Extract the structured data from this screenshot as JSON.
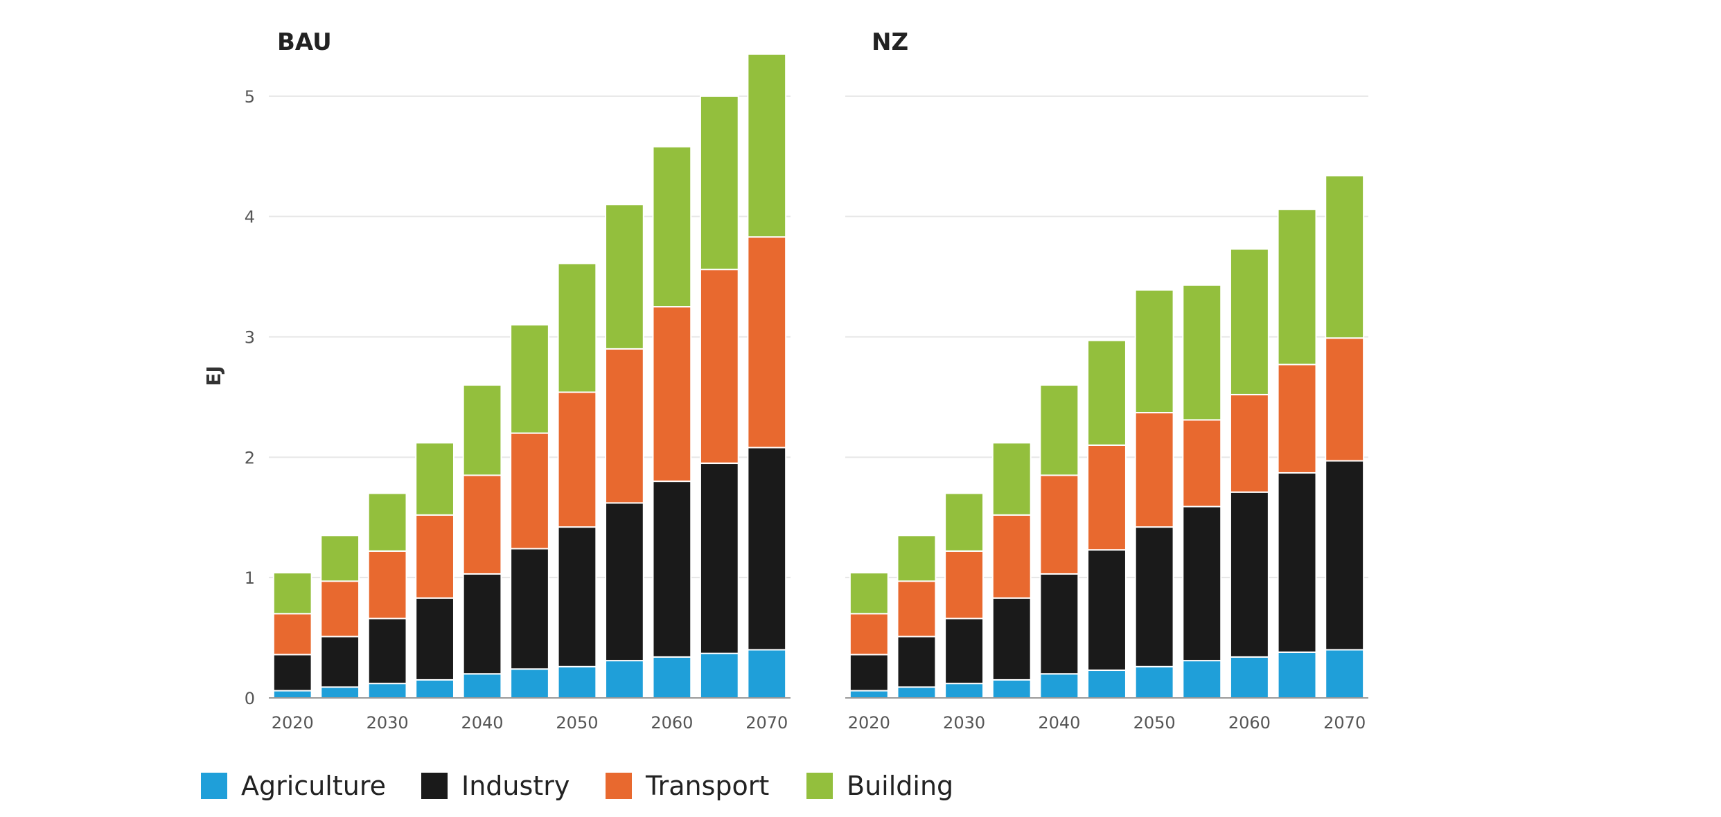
{
  "chart_data": [
    {
      "type": "bar",
      "stacked": true,
      "title": "BAU",
      "ylabel": "EJ",
      "xlabel": "",
      "ylim": [
        0,
        5.35
      ],
      "yticks": [
        0,
        1,
        2,
        3,
        4,
        5
      ],
      "categories": [
        2020,
        2025,
        2030,
        2035,
        2040,
        2045,
        2050,
        2055,
        2060,
        2065,
        2070
      ],
      "xtick_labels": [
        "2020",
        "2030",
        "2040",
        "2050",
        "2060",
        "2070"
      ],
      "grid": "horizontal",
      "series": [
        {
          "name": "Agriculture",
          "color": "#1f9fd9",
          "values": [
            0.06,
            0.09,
            0.12,
            0.15,
            0.2,
            0.24,
            0.26,
            0.31,
            0.34,
            0.37,
            0.4
          ]
        },
        {
          "name": "Industry",
          "color": "#1a1a1a",
          "values": [
            0.3,
            0.42,
            0.54,
            0.68,
            0.83,
            1.0,
            1.16,
            1.31,
            1.46,
            1.58,
            1.68
          ]
        },
        {
          "name": "Transport",
          "color": "#e8692f",
          "values": [
            0.34,
            0.46,
            0.56,
            0.69,
            0.82,
            0.96,
            1.12,
            1.28,
            1.45,
            1.61,
            1.75
          ]
        },
        {
          "name": "Building",
          "color": "#93bf3d",
          "values": [
            0.34,
            0.38,
            0.48,
            0.6,
            0.75,
            0.9,
            1.07,
            1.2,
            1.33,
            1.44,
            1.52
          ]
        }
      ]
    },
    {
      "type": "bar",
      "stacked": true,
      "title": "NZ",
      "ylabel": "",
      "xlabel": "",
      "ylim": [
        0,
        5.35
      ],
      "yticks": [
        0,
        1,
        2,
        3,
        4,
        5
      ],
      "categories": [
        2020,
        2025,
        2030,
        2035,
        2040,
        2045,
        2050,
        2055,
        2060,
        2065,
        2070
      ],
      "xtick_labels": [
        "2020",
        "2030",
        "2040",
        "2050",
        "2060",
        "2070"
      ],
      "grid": "horizontal",
      "series": [
        {
          "name": "Agriculture",
          "color": "#1f9fd9",
          "values": [
            0.06,
            0.09,
            0.12,
            0.15,
            0.2,
            0.23,
            0.26,
            0.31,
            0.34,
            0.38,
            0.4
          ]
        },
        {
          "name": "Industry",
          "color": "#1a1a1a",
          "values": [
            0.3,
            0.42,
            0.54,
            0.68,
            0.83,
            1.0,
            1.16,
            1.28,
            1.37,
            1.49,
            1.57
          ]
        },
        {
          "name": "Transport",
          "color": "#e8692f",
          "values": [
            0.34,
            0.46,
            0.56,
            0.69,
            0.82,
            0.87,
            0.95,
            0.72,
            0.81,
            0.9,
            1.02
          ]
        },
        {
          "name": "Building",
          "color": "#93bf3d",
          "values": [
            0.34,
            0.38,
            0.48,
            0.6,
            0.75,
            0.87,
            1.02,
            1.12,
            1.21,
            1.29,
            1.35
          ]
        }
      ]
    }
  ],
  "legend": {
    "placement": "bottom-left",
    "items": [
      {
        "label": "Agriculture",
        "color": "#1f9fd9"
      },
      {
        "label": "Industry",
        "color": "#1a1a1a"
      },
      {
        "label": "Transport",
        "color": "#e8692f"
      },
      {
        "label": "Building",
        "color": "#93bf3d"
      }
    ]
  }
}
